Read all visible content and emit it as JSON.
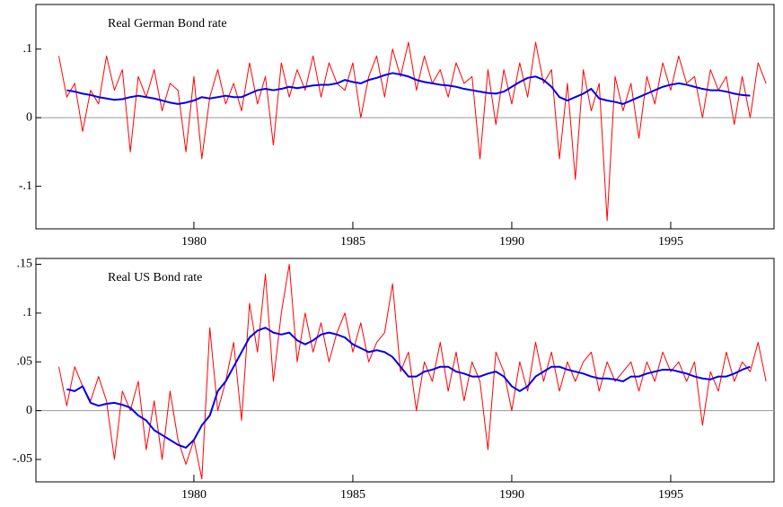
{
  "chart_data": [
    {
      "type": "line",
      "title": "Real German Bond rate",
      "xlim": [
        1975.03,
        1998.25
      ],
      "xticks": [
        1980,
        1985,
        1990,
        1995
      ],
      "ylim": [
        -0.162,
        0.165
      ],
      "yticks": [
        {
          "value": 0.1,
          "label": ".1"
        },
        0,
        {
          "value": -0.1,
          "label": "-.1"
        }
      ],
      "zero_line": true,
      "series": [
        {
          "color": "#ff0000",
          "x": [
            1975.75,
            1976,
            1976.25,
            1976.5,
            1976.75,
            1977,
            1977.25,
            1977.5,
            1977.75,
            1978,
            1978.25,
            1978.5,
            1978.75,
            1979,
            1979.25,
            1979.5,
            1979.75,
            1980,
            1980.25,
            1980.5,
            1980.75,
            1981,
            1981.25,
            1981.5,
            1981.75,
            1982,
            1982.25,
            1982.5,
            1982.75,
            1983,
            1983.25,
            1983.5,
            1983.75,
            1984,
            1984.25,
            1984.5,
            1984.75,
            1985,
            1985.25,
            1985.5,
            1985.75,
            1986,
            1986.25,
            1986.5,
            1986.75,
            1987,
            1987.25,
            1987.5,
            1987.75,
            1988,
            1988.25,
            1988.5,
            1988.75,
            1989,
            1989.25,
            1989.5,
            1989.75,
            1990,
            1990.25,
            1990.5,
            1990.75,
            1991,
            1991.25,
            1991.5,
            1991.75,
            1992,
            1992.25,
            1992.5,
            1992.75,
            1993,
            1993.25,
            1993.5,
            1993.75,
            1994,
            1994.25,
            1994.5,
            1994.75,
            1995,
            1995.25,
            1995.5,
            1995.75,
            1996,
            1996.25,
            1996.5,
            1996.75,
            1997,
            1997.25,
            1997.5,
            1997.75,
            1998
          ],
          "values": [
            0.09,
            0.03,
            0.05,
            -0.02,
            0.04,
            0.02,
            0.09,
            0.04,
            0.07,
            -0.05,
            0.06,
            0.03,
            0.07,
            0.01,
            0.05,
            0.04,
            -0.05,
            0.06,
            -0.06,
            0.03,
            0.07,
            0.02,
            0.05,
            0.01,
            0.08,
            0.02,
            0.06,
            -0.04,
            0.08,
            0.03,
            0.07,
            0.04,
            0.09,
            0.03,
            0.08,
            0.05,
            0.04,
            0.08,
            0.0,
            0.06,
            0.09,
            0.03,
            0.1,
            0.06,
            0.11,
            0.04,
            0.09,
            0.05,
            0.07,
            0.03,
            0.08,
            0.05,
            0.06,
            -0.06,
            0.07,
            -0.01,
            0.07,
            0.02,
            0.08,
            0.03,
            0.11,
            0.05,
            0.07,
            -0.06,
            0.05,
            -0.09,
            0.07,
            0.01,
            0.05,
            -0.15,
            0.06,
            0.01,
            0.05,
            -0.03,
            0.06,
            0.02,
            0.08,
            0.04,
            0.09,
            0.05,
            0.06,
            0.0,
            0.07,
            0.04,
            0.06,
            -0.01,
            0.06,
            0.0,
            0.08,
            0.05
          ]
        },
        {
          "color": "#0000ee",
          "x": [
            1976,
            1976.25,
            1976.5,
            1976.75,
            1977,
            1977.25,
            1977.5,
            1977.75,
            1978,
            1978.25,
            1978.5,
            1978.75,
            1979,
            1979.25,
            1979.5,
            1979.75,
            1980,
            1980.25,
            1980.5,
            1980.75,
            1981,
            1981.25,
            1981.5,
            1981.75,
            1982,
            1982.25,
            1982.5,
            1982.75,
            1983,
            1983.25,
            1983.5,
            1983.75,
            1984,
            1984.25,
            1984.5,
            1984.75,
            1985,
            1985.25,
            1985.5,
            1985.75,
            1986,
            1986.25,
            1986.5,
            1986.75,
            1987,
            1987.25,
            1987.5,
            1987.75,
            1988,
            1988.25,
            1988.5,
            1988.75,
            1989,
            1989.25,
            1989.5,
            1989.75,
            1990,
            1990.25,
            1990.5,
            1990.75,
            1991,
            1991.25,
            1991.5,
            1991.75,
            1992,
            1992.25,
            1992.5,
            1992.75,
            1993,
            1993.25,
            1993.5,
            1993.75,
            1994,
            1994.25,
            1994.5,
            1994.75,
            1995,
            1995.25,
            1995.5,
            1995.75,
            1996,
            1996.25,
            1996.5,
            1996.75,
            1997,
            1997.25,
            1997.5
          ],
          "values": [
            0.04,
            0.038,
            0.035,
            0.033,
            0.03,
            0.028,
            0.026,
            0.027,
            0.03,
            0.032,
            0.03,
            0.028,
            0.025,
            0.022,
            0.02,
            0.022,
            0.025,
            0.03,
            0.028,
            0.03,
            0.032,
            0.03,
            0.03,
            0.035,
            0.04,
            0.042,
            0.04,
            0.042,
            0.045,
            0.043,
            0.045,
            0.047,
            0.048,
            0.048,
            0.05,
            0.055,
            0.052,
            0.05,
            0.055,
            0.058,
            0.062,
            0.065,
            0.063,
            0.06,
            0.055,
            0.052,
            0.05,
            0.048,
            0.047,
            0.045,
            0.042,
            0.04,
            0.038,
            0.036,
            0.035,
            0.038,
            0.045,
            0.052,
            0.058,
            0.06,
            0.055,
            0.045,
            0.03,
            0.025,
            0.03,
            0.035,
            0.042,
            0.028,
            0.025,
            0.023,
            0.02,
            0.025,
            0.03,
            0.035,
            0.04,
            0.045,
            0.048,
            0.05,
            0.048,
            0.045,
            0.042,
            0.04,
            0.04,
            0.038,
            0.035,
            0.033,
            0.032
          ]
        }
      ]
    },
    {
      "type": "line",
      "title": "Real US Bond rate",
      "xlim": [
        1975.03,
        1998.25
      ],
      "xticks": [
        1980,
        1985,
        1990,
        1995
      ],
      "ylim": [
        -0.073,
        0.156
      ],
      "yticks": [
        {
          "value": 0.15,
          "label": ".15"
        },
        {
          "value": 0.1,
          "label": ".1"
        },
        {
          "value": 0.05,
          "label": ".05"
        },
        0,
        {
          "value": -0.05,
          "label": "-.05"
        }
      ],
      "zero_line": true,
      "series": [
        {
          "color": "#ff0000",
          "x": [
            1975.75,
            1976,
            1976.25,
            1976.5,
            1976.75,
            1977,
            1977.25,
            1977.5,
            1977.75,
            1978,
            1978.25,
            1978.5,
            1978.75,
            1979,
            1979.25,
            1979.5,
            1979.75,
            1980,
            1980.25,
            1980.5,
            1980.75,
            1981,
            1981.25,
            1981.5,
            1981.75,
            1982,
            1982.25,
            1982.5,
            1982.75,
            1983,
            1983.25,
            1983.5,
            1983.75,
            1984,
            1984.25,
            1984.5,
            1984.75,
            1985,
            1985.25,
            1985.5,
            1985.75,
            1986,
            1986.25,
            1986.5,
            1986.75,
            1987,
            1987.25,
            1987.5,
            1987.75,
            1988,
            1988.25,
            1988.5,
            1988.75,
            1989,
            1989.25,
            1989.5,
            1989.75,
            1990,
            1990.25,
            1990.5,
            1990.75,
            1991,
            1991.25,
            1991.5,
            1991.75,
            1992,
            1992.25,
            1992.5,
            1992.75,
            1993,
            1993.25,
            1993.5,
            1993.75,
            1994,
            1994.25,
            1994.5,
            1994.75,
            1995,
            1995.25,
            1995.5,
            1995.75,
            1996,
            1996.25,
            1996.5,
            1996.75,
            1997,
            1997.25,
            1997.5,
            1997.75,
            1998
          ],
          "values": [
            0.045,
            0.005,
            0.045,
            0.025,
            0.01,
            0.035,
            0.01,
            -0.05,
            0.02,
            0.0,
            0.03,
            -0.04,
            0.01,
            -0.05,
            0.02,
            -0.03,
            -0.055,
            -0.03,
            -0.07,
            0.085,
            0.0,
            0.03,
            0.07,
            -0.01,
            0.11,
            0.06,
            0.14,
            0.03,
            0.1,
            0.15,
            0.05,
            0.1,
            0.06,
            0.09,
            0.05,
            0.08,
            0.1,
            0.06,
            0.09,
            0.05,
            0.07,
            0.08,
            0.13,
            0.04,
            0.06,
            0.0,
            0.05,
            0.03,
            0.07,
            0.02,
            0.06,
            0.01,
            0.05,
            0.03,
            -0.04,
            0.06,
            0.04,
            0.0,
            0.05,
            0.02,
            0.07,
            0.03,
            0.06,
            0.02,
            0.05,
            0.03,
            0.05,
            0.06,
            0.02,
            0.05,
            0.03,
            0.04,
            0.05,
            0.02,
            0.05,
            0.03,
            0.06,
            0.04,
            0.05,
            0.03,
            0.05,
            -0.015,
            0.04,
            0.02,
            0.06,
            0.03,
            0.05,
            0.04,
            0.07,
            0.03
          ]
        },
        {
          "color": "#0000ee",
          "x": [
            1976,
            1976.25,
            1976.5,
            1976.75,
            1977,
            1977.25,
            1977.5,
            1977.75,
            1978,
            1978.25,
            1978.5,
            1978.75,
            1979,
            1979.25,
            1979.5,
            1979.75,
            1980,
            1980.25,
            1980.5,
            1980.75,
            1981,
            1981.25,
            1981.5,
            1981.75,
            1982,
            1982.25,
            1982.5,
            1982.75,
            1983,
            1983.25,
            1983.5,
            1983.75,
            1984,
            1984.25,
            1984.5,
            1984.75,
            1985,
            1985.25,
            1985.5,
            1985.75,
            1986,
            1986.25,
            1986.5,
            1986.75,
            1987,
            1987.25,
            1987.5,
            1987.75,
            1988,
            1988.25,
            1988.5,
            1988.75,
            1989,
            1989.25,
            1989.5,
            1989.75,
            1990,
            1990.25,
            1990.5,
            1990.75,
            1991,
            1991.25,
            1991.5,
            1991.75,
            1992,
            1992.25,
            1992.5,
            1992.75,
            1993,
            1993.25,
            1993.5,
            1993.75,
            1994,
            1994.25,
            1994.5,
            1994.75,
            1995,
            1995.25,
            1995.5,
            1995.75,
            1996,
            1996.25,
            1996.5,
            1996.75,
            1997,
            1997.25,
            1997.5
          ],
          "values": [
            0.022,
            0.02,
            0.025,
            0.008,
            0.005,
            0.007,
            0.008,
            0.006,
            0.003,
            -0.005,
            -0.01,
            -0.02,
            -0.025,
            -0.03,
            -0.035,
            -0.038,
            -0.03,
            -0.015,
            -0.005,
            0.02,
            0.03,
            0.045,
            0.06,
            0.075,
            0.082,
            0.085,
            0.08,
            0.078,
            0.08,
            0.072,
            0.068,
            0.072,
            0.078,
            0.08,
            0.078,
            0.075,
            0.068,
            0.064,
            0.06,
            0.062,
            0.06,
            0.055,
            0.045,
            0.035,
            0.035,
            0.04,
            0.042,
            0.045,
            0.045,
            0.04,
            0.038,
            0.035,
            0.035,
            0.038,
            0.04,
            0.035,
            0.025,
            0.02,
            0.025,
            0.035,
            0.04,
            0.045,
            0.045,
            0.042,
            0.04,
            0.038,
            0.035,
            0.033,
            0.033,
            0.032,
            0.03,
            0.035,
            0.035,
            0.038,
            0.04,
            0.042,
            0.042,
            0.04,
            0.038,
            0.035,
            0.033,
            0.032,
            0.035,
            0.035,
            0.038,
            0.042,
            0.045
          ]
        }
      ]
    }
  ]
}
